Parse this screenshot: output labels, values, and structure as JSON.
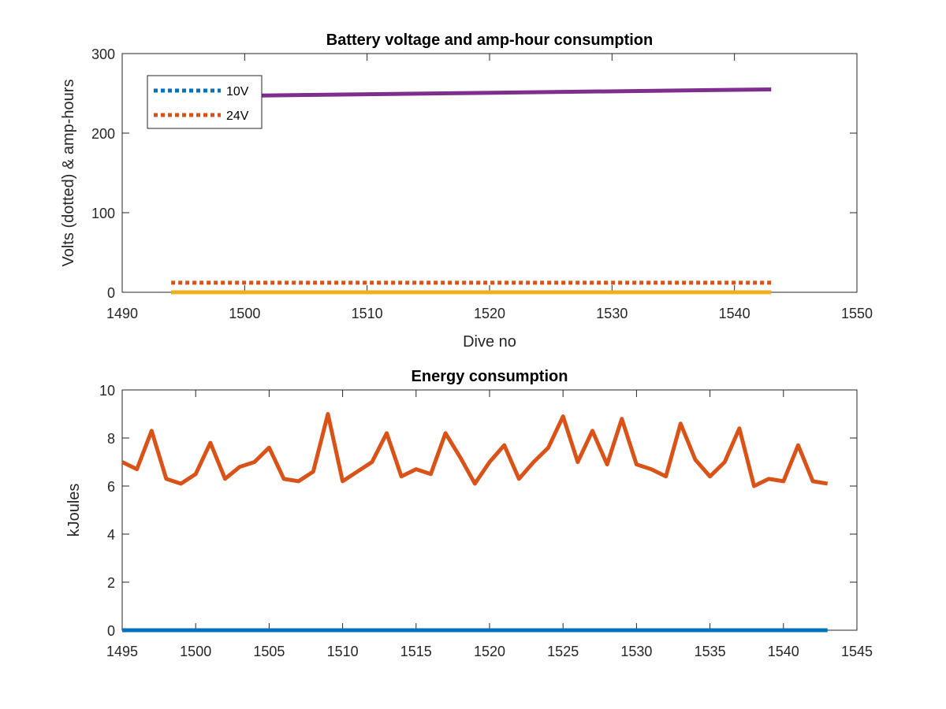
{
  "chart_data": [
    {
      "type": "line",
      "title": "Battery voltage and amp-hour consumption",
      "xlabel": "Dive no",
      "ylabel": "Volts (dotted) & amp-hours",
      "xlim": [
        1490,
        1550
      ],
      "ylim": [
        0,
        300
      ],
      "xticks": [
        1490,
        1500,
        1510,
        1520,
        1530,
        1540,
        1550
      ],
      "yticks": [
        0,
        100,
        200,
        300
      ],
      "grid": false,
      "legend": {
        "placement": "top-left",
        "entries": [
          "10V",
          "24V"
        ]
      },
      "series": [
        {
          "name": "10V",
          "style": "dotted",
          "color": "#0072BD",
          "x": [
            1494,
            1543
          ],
          "y": [
            0,
            0
          ]
        },
        {
          "name": "24V",
          "style": "dotted",
          "color": "#D95319",
          "x": [
            1494,
            1543
          ],
          "y": [
            12,
            12
          ]
        },
        {
          "style": "solid",
          "color": "#EDB120",
          "x": [
            1494,
            1543
          ],
          "y": [
            0,
            0
          ]
        },
        {
          "style": "solid",
          "color": "#7E2F8E",
          "x": [
            1500,
            1543
          ],
          "y": [
            247,
            255
          ]
        }
      ]
    },
    {
      "type": "line",
      "title": "Energy consumption",
      "xlabel": "",
      "ylabel": "kJoules",
      "xlim": [
        1495,
        1545
      ],
      "ylim": [
        0,
        10
      ],
      "xticks": [
        1495,
        1500,
        1505,
        1510,
        1515,
        1520,
        1525,
        1530,
        1535,
        1540,
        1545
      ],
      "yticks": [
        0,
        2,
        4,
        6,
        8,
        10
      ],
      "grid": false,
      "series": [
        {
          "style": "solid",
          "color": "#D95319",
          "x": [
            1495,
            1496,
            1497,
            1498,
            1499,
            1500,
            1501,
            1502,
            1503,
            1504,
            1505,
            1506,
            1507,
            1508,
            1509,
            1510,
            1511,
            1512,
            1513,
            1514,
            1515,
            1516,
            1517,
            1518,
            1519,
            1520,
            1521,
            1522,
            1523,
            1524,
            1525,
            1526,
            1527,
            1528,
            1529,
            1530,
            1531,
            1532,
            1533,
            1534,
            1535,
            1536,
            1537,
            1538,
            1539,
            1540,
            1541,
            1542,
            1543
          ],
          "y": [
            7.0,
            6.7,
            8.3,
            6.3,
            6.1,
            6.5,
            7.8,
            6.3,
            6.8,
            7.0,
            7.6,
            6.3,
            6.2,
            6.6,
            9.0,
            6.2,
            6.6,
            7.0,
            8.2,
            6.4,
            6.7,
            6.5,
            8.2,
            7.2,
            6.1,
            7.0,
            7.7,
            6.3,
            7.0,
            7.6,
            8.9,
            7.0,
            8.3,
            6.9,
            8.8,
            6.9,
            6.7,
            6.4,
            8.6,
            7.1,
            6.4,
            7.0,
            8.4,
            6.0,
            6.3,
            6.2,
            7.7,
            6.2,
            6.1
          ]
        },
        {
          "style": "solid",
          "color": "#0072BD",
          "x": [
            1495,
            1543
          ],
          "y": [
            0,
            0
          ]
        }
      ]
    }
  ]
}
